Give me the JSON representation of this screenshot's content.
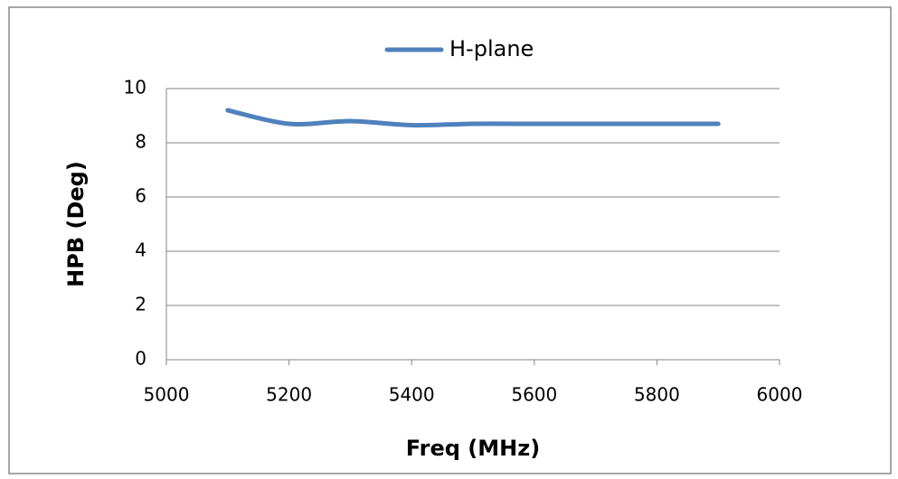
{
  "chart_data": {
    "type": "line",
    "x": [
      5100,
      5200,
      5300,
      5400,
      5500,
      5600,
      5700,
      5800,
      5900
    ],
    "series": [
      {
        "name": "H-plane",
        "color": "#4f81bd",
        "values": [
          9.2,
          8.7,
          8.8,
          8.65,
          8.7,
          8.7,
          8.7,
          8.7,
          8.7
        ]
      }
    ],
    "xlabel": "Freq (MHz)",
    "ylabel": "HPB (Deg)",
    "xlim": [
      5000,
      6000
    ],
    "xticks": [
      5000,
      5200,
      5400,
      5600,
      5800,
      6000
    ],
    "ylim": [
      0,
      10
    ],
    "yticks": [
      0,
      2,
      4,
      6,
      8,
      10
    ],
    "grid": true,
    "legend": "top"
  }
}
